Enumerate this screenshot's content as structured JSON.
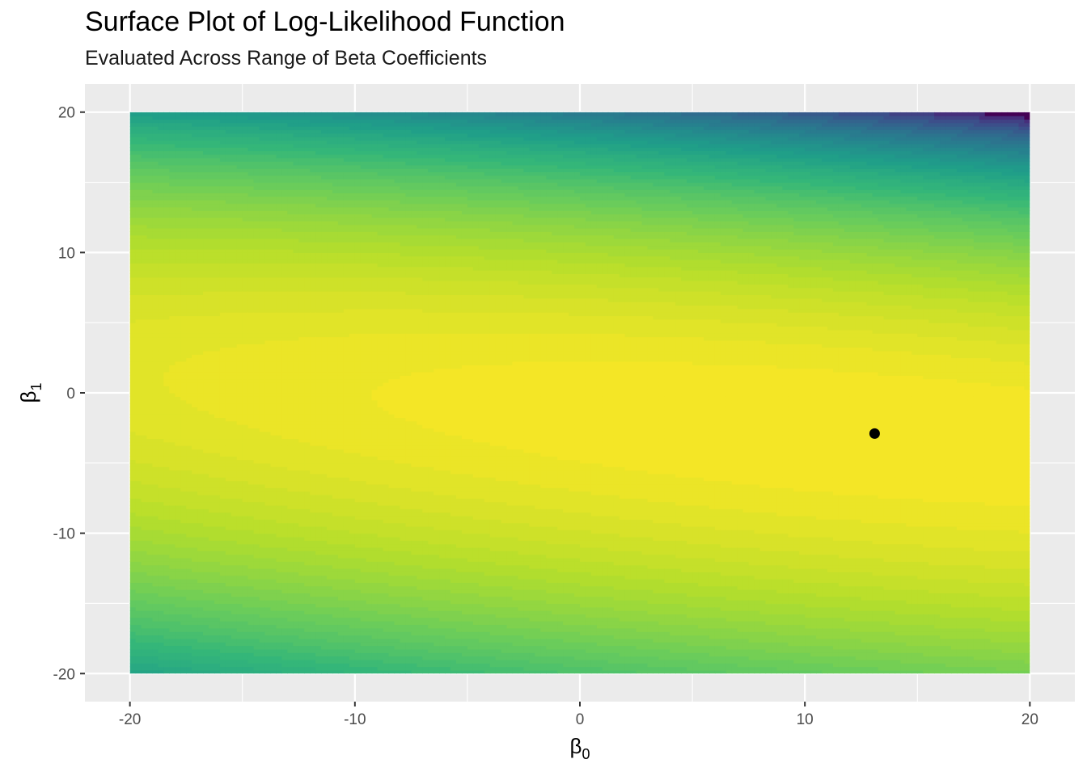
{
  "chart_data": {
    "type": "heatmap",
    "title": "Surface Plot of Log-Likelihood Function",
    "subtitle": "Evaluated Across Range of Beta Coefficients",
    "x_axis": {
      "symbol": "β",
      "subscript": "0",
      "range": [
        -22,
        22
      ],
      "ticks": [
        -20,
        -10,
        0,
        10,
        20
      ],
      "tick_labels": [
        "-20",
        "-10",
        "0",
        "10",
        "20"
      ]
    },
    "y_axis": {
      "symbol": "β",
      "subscript": "1",
      "range": [
        -22,
        22
      ],
      "ticks": [
        -20,
        -10,
        0,
        10,
        20
      ],
      "tick_labels": [
        "-20",
        "-10",
        "0",
        "10",
        "20"
      ]
    },
    "surface": {
      "x_range": [
        -20,
        20
      ],
      "y_range": [
        -20,
        20
      ],
      "colormap": "viridis",
      "maximum_at": {
        "x": 13.1,
        "y": -2.9
      }
    },
    "points": [
      {
        "x": 13.1,
        "y": -2.9,
        "color": "#000000"
      }
    ],
    "grid": true,
    "panel_background": "#EBEBEB",
    "gridline_color": "#FFFFFF"
  }
}
